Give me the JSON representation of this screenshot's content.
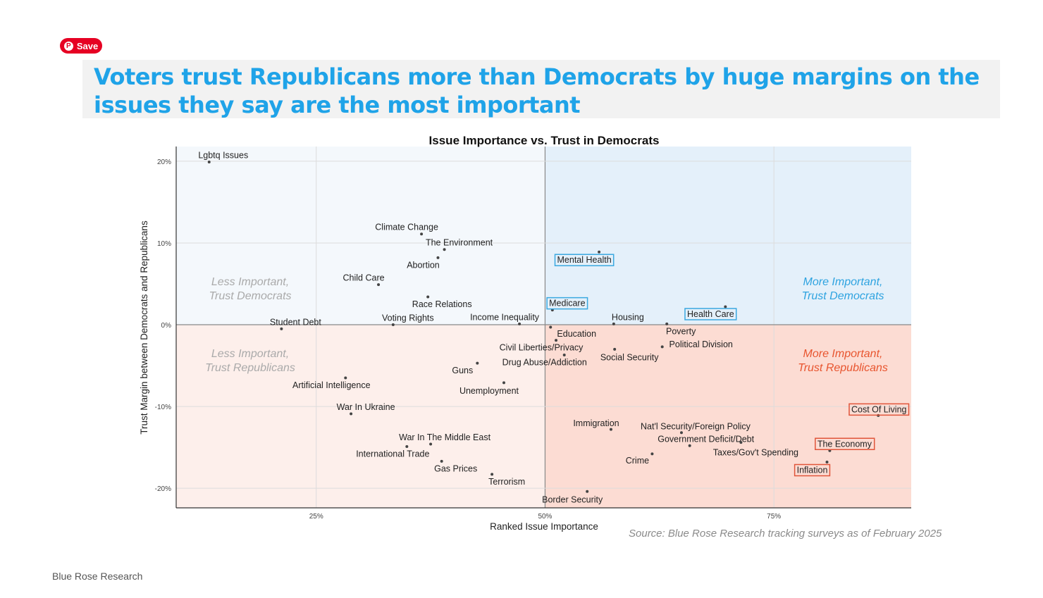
{
  "save_button": {
    "label": "Save",
    "icon": "pinterest-icon",
    "color": "#e60023"
  },
  "headline": "Voters trust Republicans more than Democrats by huge margins on the issues they say are the most important",
  "source": "Source: Blue Rose Research tracking surveys as of February 2025",
  "footer": "Blue Rose Research",
  "chart_data": {
    "type": "scatter",
    "title": "Issue Importance vs. Trust in Democrats",
    "xlabel": "Ranked Issue Importance",
    "ylabel": "Trust Margin between Democrats and Republicans",
    "xlim": [
      9.7,
      90
    ],
    "ylim": [
      -22.4,
      21.8
    ],
    "x_ticks": [
      {
        "v": 25,
        "label": "25%"
      },
      {
        "v": 50,
        "label": "50%"
      },
      {
        "v": 75,
        "label": "75%"
      }
    ],
    "y_ticks": [
      {
        "v": 20,
        "label": "20%"
      },
      {
        "v": 10,
        "label": "10%"
      },
      {
        "v": 0,
        "label": "0%"
      },
      {
        "v": -10,
        "label": "-10%"
      },
      {
        "v": -20,
        "label": "-20%"
      }
    ],
    "grid": true,
    "quadrants": {
      "top_left": {
        "label": [
          "Less Important,",
          "Trust Democrats"
        ],
        "color": "#f4f8fc",
        "text_color": "#aaaaaa"
      },
      "top_right": {
        "label": [
          "More Important,",
          "Trust Democrats"
        ],
        "color": "#e4f0fa",
        "text_color": "#2ea3e0"
      },
      "bottom_left": {
        "label": [
          "Less Important,",
          "Trust Republicans"
        ],
        "color": "#fdefeb",
        "text_color": "#aaaaaa"
      },
      "bottom_right": {
        "label": [
          "More Important,",
          "Trust Republicans"
        ],
        "color": "#fcdcd3",
        "text_color": "#e8552f"
      }
    },
    "highlight_colors": {
      "dem": "#3aa8e0",
      "rep": "#e0553a"
    },
    "points": [
      {
        "label": "Lgbtq Issues",
        "x": 13.3,
        "y": 19.9
      },
      {
        "label": "Climate Change",
        "x": 36.5,
        "y": 11.1
      },
      {
        "label": "The Environment",
        "x": 39.0,
        "y": 9.2
      },
      {
        "label": "Abortion",
        "x": 38.3,
        "y": 8.2
      },
      {
        "label": "Child Care",
        "x": 31.8,
        "y": 4.9
      },
      {
        "label": "Race Relations",
        "x": 37.2,
        "y": 3.4
      },
      {
        "label": "Student Debt",
        "x": 21.2,
        "y": -0.5
      },
      {
        "label": "Voting Rights",
        "x": 33.4,
        "y": 0.0
      },
      {
        "label": "Income Inequality",
        "x": 47.2,
        "y": 0.1
      },
      {
        "label": "Mental Health",
        "x": 55.9,
        "y": 8.9,
        "highlight": "dem"
      },
      {
        "label": "Medicare",
        "x": 50.8,
        "y": 1.8,
        "highlight": "dem"
      },
      {
        "label": "Health Care",
        "x": 69.7,
        "y": 2.2,
        "highlight": "dem"
      },
      {
        "label": "Housing",
        "x": 57.5,
        "y": 0.1
      },
      {
        "label": "Poverty",
        "x": 63.3,
        "y": 0.1
      },
      {
        "label": "Education",
        "x": 50.6,
        "y": -0.3
      },
      {
        "label": "Civil Liberties/Privacy",
        "x": 51.2,
        "y": -1.9
      },
      {
        "label": "Drug Abuse/Addiction",
        "x": 52.1,
        "y": -3.7
      },
      {
        "label": "Social Security",
        "x": 57.6,
        "y": -3.0
      },
      {
        "label": "Political Division",
        "x": 62.8,
        "y": -2.7
      },
      {
        "label": "Guns",
        "x": 42.6,
        "y": -4.7
      },
      {
        "label": "Unemployment",
        "x": 45.5,
        "y": -7.1
      },
      {
        "label": "Artificial Intelligence",
        "x": 28.2,
        "y": -6.5
      },
      {
        "label": "War In Ukraine",
        "x": 28.8,
        "y": -10.9
      },
      {
        "label": "War In The Middle East",
        "x": 37.5,
        "y": -14.6
      },
      {
        "label": "International Trade",
        "x": 34.9,
        "y": -14.9
      },
      {
        "label": "Gas Prices",
        "x": 38.7,
        "y": -16.7
      },
      {
        "label": "Terrorism",
        "x": 44.2,
        "y": -18.3
      },
      {
        "label": "Border Security",
        "x": 54.6,
        "y": -20.4
      },
      {
        "label": "Immigration",
        "x": 57.2,
        "y": -12.8
      },
      {
        "label": "Nat'l Security/Foreign Policy",
        "x": 64.9,
        "y": -13.2
      },
      {
        "label": "Government Deficit/Debt",
        "x": 65.8,
        "y": -14.8
      },
      {
        "label": "Crime",
        "x": 61.7,
        "y": -15.8
      },
      {
        "label": "Taxes/Gov't Spending",
        "x": 71.4,
        "y": -14.4
      },
      {
        "label": "Cost Of Living",
        "x": 86.4,
        "y": -11.1,
        "highlight": "rep"
      },
      {
        "label": "The Economy",
        "x": 81.1,
        "y": -15.4,
        "highlight": "rep"
      },
      {
        "label": "Inflation",
        "x": 80.8,
        "y": -16.8,
        "highlight": "rep"
      }
    ]
  }
}
